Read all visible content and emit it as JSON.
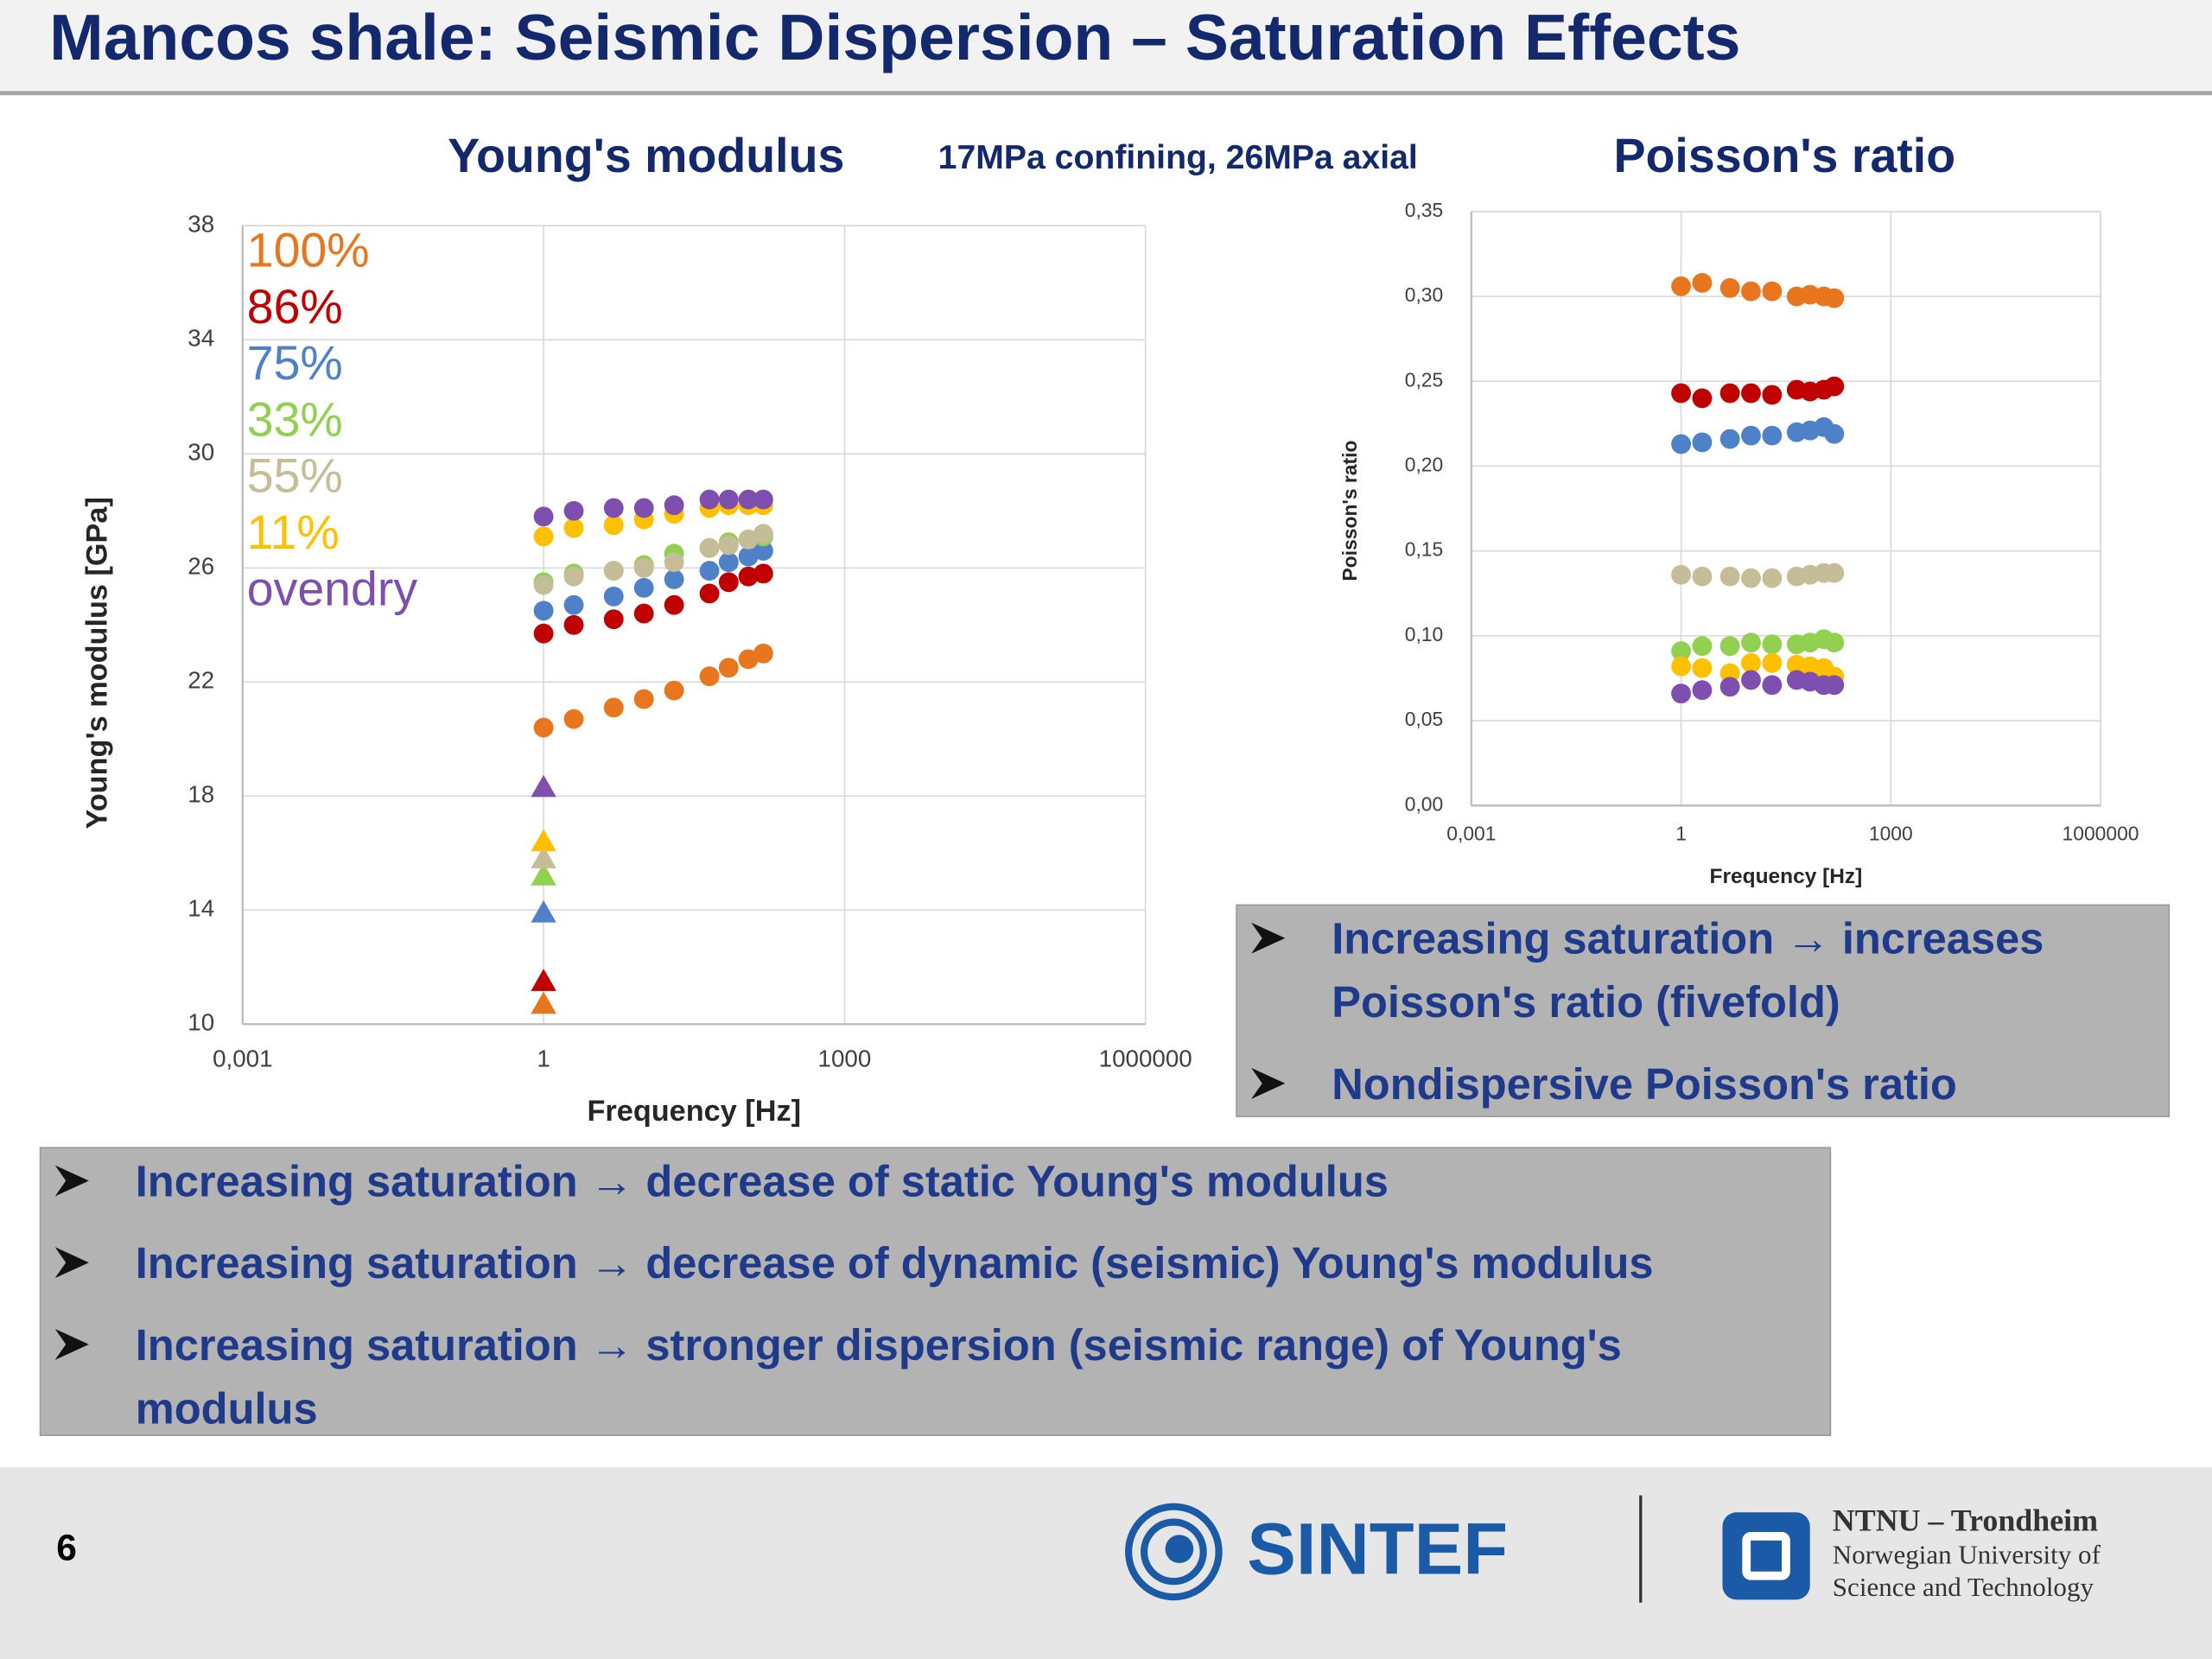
{
  "title": "Mancos shale: Seismic Dispersion – Saturation Effects",
  "chart_data": [
    {
      "type": "scatter",
      "title": "Young's modulus",
      "subtitle": "17MPa confining, 26MPa axial",
      "x_label": "Frequency [Hz]",
      "y_label": "Young's modulus [GPa]",
      "xscale": "log",
      "grid": true,
      "xlim": [
        0.001,
        1000000
      ],
      "xticks": [
        {
          "value": 0.001,
          "label": "0,001"
        },
        1,
        1000,
        1000000
      ],
      "ylim": [
        10,
        38
      ],
      "yticks": [
        10,
        14,
        18,
        22,
        26,
        30,
        34,
        38
      ],
      "x": [
        1,
        2,
        5,
        10,
        20,
        45,
        70,
        110,
        155
      ],
      "static_x": 1,
      "series": [
        {
          "name": "100%",
          "color": "#e8761e",
          "values": [
            20.4,
            20.7,
            21.1,
            21.4,
            21.7,
            22.2,
            22.5,
            22.8,
            23.0
          ],
          "static": 10.7
        },
        {
          "name": "86%",
          "color": "#c00000",
          "values": [
            23.7,
            24.0,
            24.2,
            24.4,
            24.7,
            25.1,
            25.5,
            25.7,
            25.8
          ],
          "static": 11.5
        },
        {
          "name": "75%",
          "color": "#4f81c9",
          "values": [
            24.5,
            24.7,
            25.0,
            25.3,
            25.6,
            25.9,
            26.2,
            26.4,
            26.6
          ],
          "static": 13.9
        },
        {
          "name": "33%",
          "color": "#92d050",
          "values": [
            25.5,
            25.8,
            25.9,
            26.1,
            26.5,
            26.7,
            26.9,
            27.0,
            27.1
          ],
          "static": 15.2
        },
        {
          "name": "55%",
          "color": "#c4bd97",
          "values": [
            25.4,
            25.7,
            25.9,
            26.0,
            26.2,
            26.7,
            26.8,
            27.0,
            27.2
          ],
          "static": 15.8
        },
        {
          "name": "11%",
          "color": "#ffc000",
          "values": [
            27.1,
            27.4,
            27.5,
            27.7,
            27.9,
            28.1,
            28.2,
            28.2,
            28.2
          ],
          "static": 16.4
        },
        {
          "name": "ovendry",
          "color": "#7f4fb0",
          "values": [
            27.8,
            28.0,
            28.1,
            28.1,
            28.2,
            28.4,
            28.4,
            28.4,
            28.4
          ],
          "static": 18.3
        }
      ]
    },
    {
      "type": "scatter",
      "title": "Poisson's ratio",
      "x_label": "Frequency [Hz]",
      "y_label": "Poisson's ratio",
      "xscale": "log",
      "grid": true,
      "xlim": [
        0.001,
        1000000
      ],
      "xticks": [
        {
          "value": 0.001,
          "label": "0,001"
        },
        1,
        1000,
        1000000
      ],
      "ylim": [
        0,
        0.35
      ],
      "yticks": [
        {
          "value": 0,
          "label": "0,00"
        },
        {
          "value": 0.05,
          "label": "0,05"
        },
        {
          "value": 0.1,
          "label": "0,10"
        },
        {
          "value": 0.15,
          "label": "0,15"
        },
        {
          "value": 0.2,
          "label": "0,20"
        },
        {
          "value": 0.25,
          "label": "0,25"
        },
        {
          "value": 0.3,
          "label": "0,30"
        },
        {
          "value": 0.35,
          "label": "0,35"
        }
      ],
      "x": [
        1,
        2,
        5,
        10,
        20,
        45,
        70,
        110,
        155
      ],
      "series": [
        {
          "color": "#e8761e",
          "values": [
            0.306,
            0.308,
            0.305,
            0.303,
            0.303,
            0.3,
            0.301,
            0.3,
            0.299
          ]
        },
        {
          "color": "#c00000",
          "values": [
            0.243,
            0.24,
            0.243,
            0.243,
            0.242,
            0.245,
            0.244,
            0.245,
            0.247
          ]
        },
        {
          "color": "#4f81c9",
          "values": [
            0.213,
            0.214,
            0.216,
            0.218,
            0.218,
            0.22,
            0.221,
            0.223,
            0.219
          ]
        },
        {
          "color": "#c4bd97",
          "values": [
            0.136,
            0.135,
            0.135,
            0.134,
            0.134,
            0.135,
            0.136,
            0.137,
            0.137
          ]
        },
        {
          "color": "#92d050",
          "values": [
            0.091,
            0.094,
            0.094,
            0.096,
            0.095,
            0.095,
            0.096,
            0.098,
            0.096
          ]
        },
        {
          "color": "#ffc000",
          "values": [
            0.082,
            0.081,
            0.078,
            0.084,
            0.084,
            0.083,
            0.082,
            0.081,
            0.076
          ]
        },
        {
          "color": "#7f4fb0",
          "values": [
            0.066,
            0.068,
            0.07,
            0.074,
            0.071,
            0.074,
            0.073,
            0.071,
            0.071
          ]
        }
      ]
    }
  ],
  "bullets_poisson": [
    "Increasing saturation → increases Poisson's ratio (fivefold)",
    "Nondispersive Poisson's ratio"
  ],
  "bullets_young": [
    "Increasing saturation → decrease of static Young's modulus",
    "Increasing saturation → decrease of dynamic (seismic) Young's modulus",
    "Increasing saturation → stronger dispersion (seismic range) of Young's modulus"
  ],
  "page_number": "6",
  "logos": {
    "sintef": "SINTEF",
    "ntnu": [
      "NTNU – Trondheim",
      "Norwegian University of",
      "Science and Technology"
    ]
  }
}
